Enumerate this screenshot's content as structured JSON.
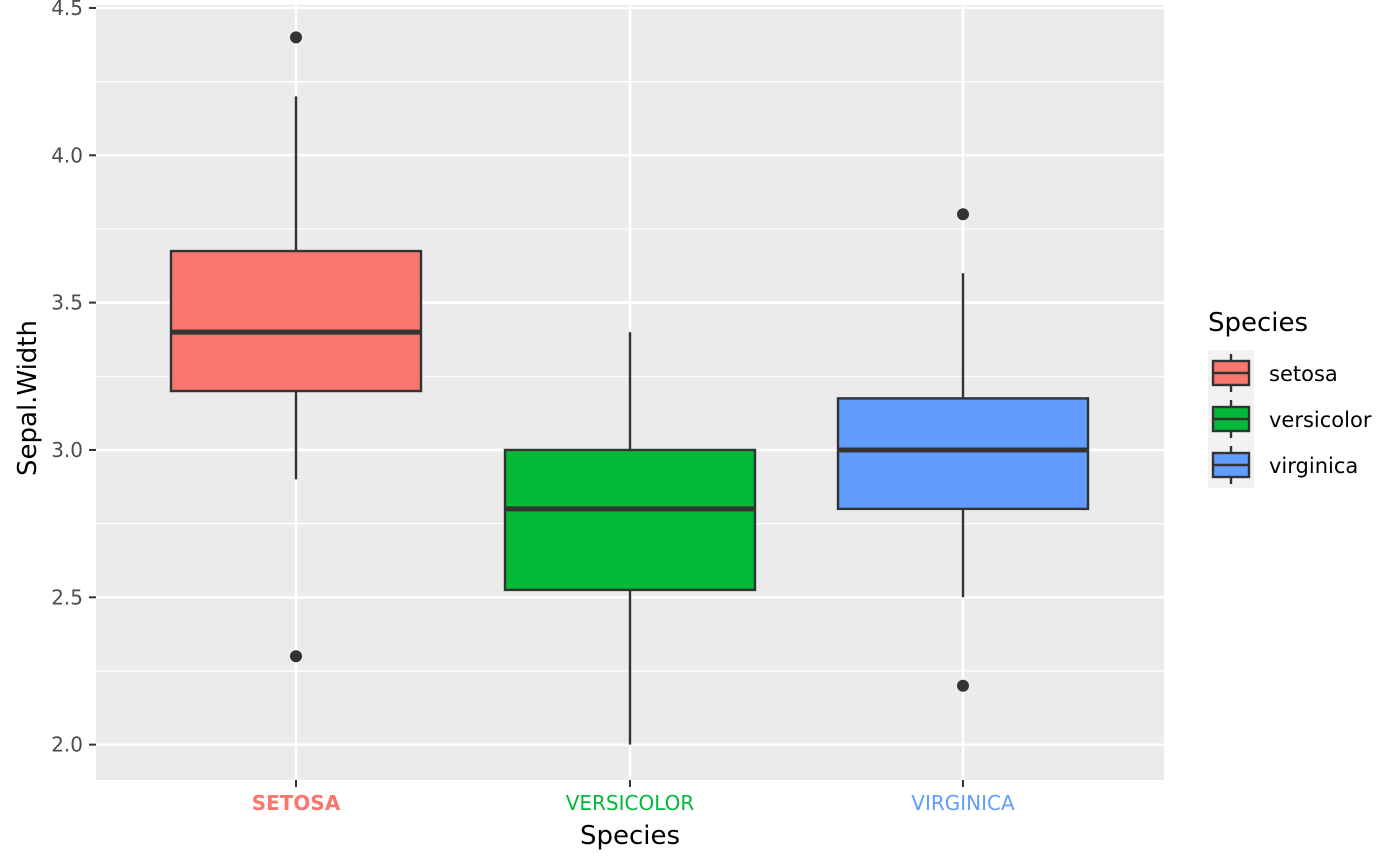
{
  "chart_data": {
    "type": "boxplot",
    "xlabel": "Species",
    "ylabel": "Sepal.Width",
    "categories": [
      "SETOSA",
      "VERSICOLOR",
      "VIRGINICA"
    ],
    "ylim": [
      1.88,
      4.51
    ],
    "yticks": [
      "2.0",
      "2.5",
      "3.0",
      "3.5",
      "4.0",
      "4.5"
    ],
    "grid": true,
    "panel_background": "#EBEBEB",
    "series": [
      {
        "name": "setosa",
        "color": "#F8766D",
        "label_color": "#F8766D",
        "label_weight": "bold",
        "q1": 3.2,
        "median": 3.4,
        "q3": 3.675,
        "whisker_low": 2.9,
        "whisker_high": 4.2,
        "outliers": [
          4.4,
          2.3
        ]
      },
      {
        "name": "versicolor",
        "color": "#00BA38",
        "label_color": "#00BA38",
        "label_weight": "normal",
        "q1": 2.525,
        "median": 2.8,
        "q3": 3.0,
        "whisker_low": 2.0,
        "whisker_high": 3.4,
        "outliers": []
      },
      {
        "name": "virginica",
        "color": "#619CFF",
        "label_color": "#619CFF",
        "label_weight": "normal",
        "q1": 2.8,
        "median": 3.0,
        "q3": 3.175,
        "whisker_low": 2.5,
        "whisker_high": 3.6,
        "outliers": [
          3.8,
          2.2
        ]
      }
    ],
    "legend": {
      "title": "Species",
      "position": "right",
      "entries": [
        "setosa",
        "versicolor",
        "virginica"
      ]
    }
  }
}
